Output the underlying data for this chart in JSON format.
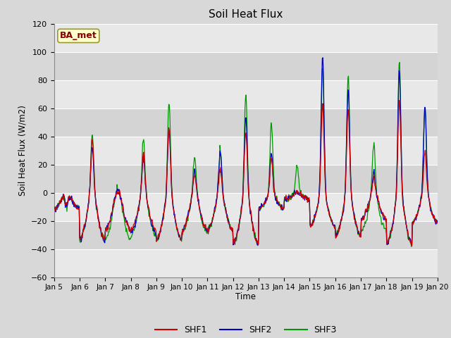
{
  "title": "Soil Heat Flux",
  "ylabel": "Soil Heat Flux (W/m2)",
  "xlabel": "Time",
  "ylim": [
    -60,
    120
  ],
  "yticks": [
    -60,
    -40,
    -20,
    0,
    20,
    40,
    60,
    80,
    100,
    120
  ],
  "xtick_labels": [
    "Jan 5",
    "Jan 6",
    "Jan 7",
    "Jan 8",
    "Jan 9",
    "Jan 10",
    "Jan 11",
    "Jan 12",
    "Jan 13",
    "Jan 14",
    "Jan 15",
    "Jan 16",
    "Jan 17",
    "Jan 18",
    "Jan 19",
    "Jan 20"
  ],
  "colors": {
    "SHF1": "#cc0000",
    "SHF2": "#0000cc",
    "SHF3": "#009900"
  },
  "fig_facecolor": "#d8d8d8",
  "plot_bg_color": "#e0e0e0",
  "band_light": "#e8e8e8",
  "band_dark": "#d4d4d4",
  "label_box_facecolor": "#ffffcc",
  "label_box_edgecolor": "#999933",
  "label_box_text": "BA_met",
  "label_box_text_color": "#880000",
  "grid_color": "#ffffff",
  "legend_labels": [
    "SHF1",
    "SHF2",
    "SHF3"
  ]
}
